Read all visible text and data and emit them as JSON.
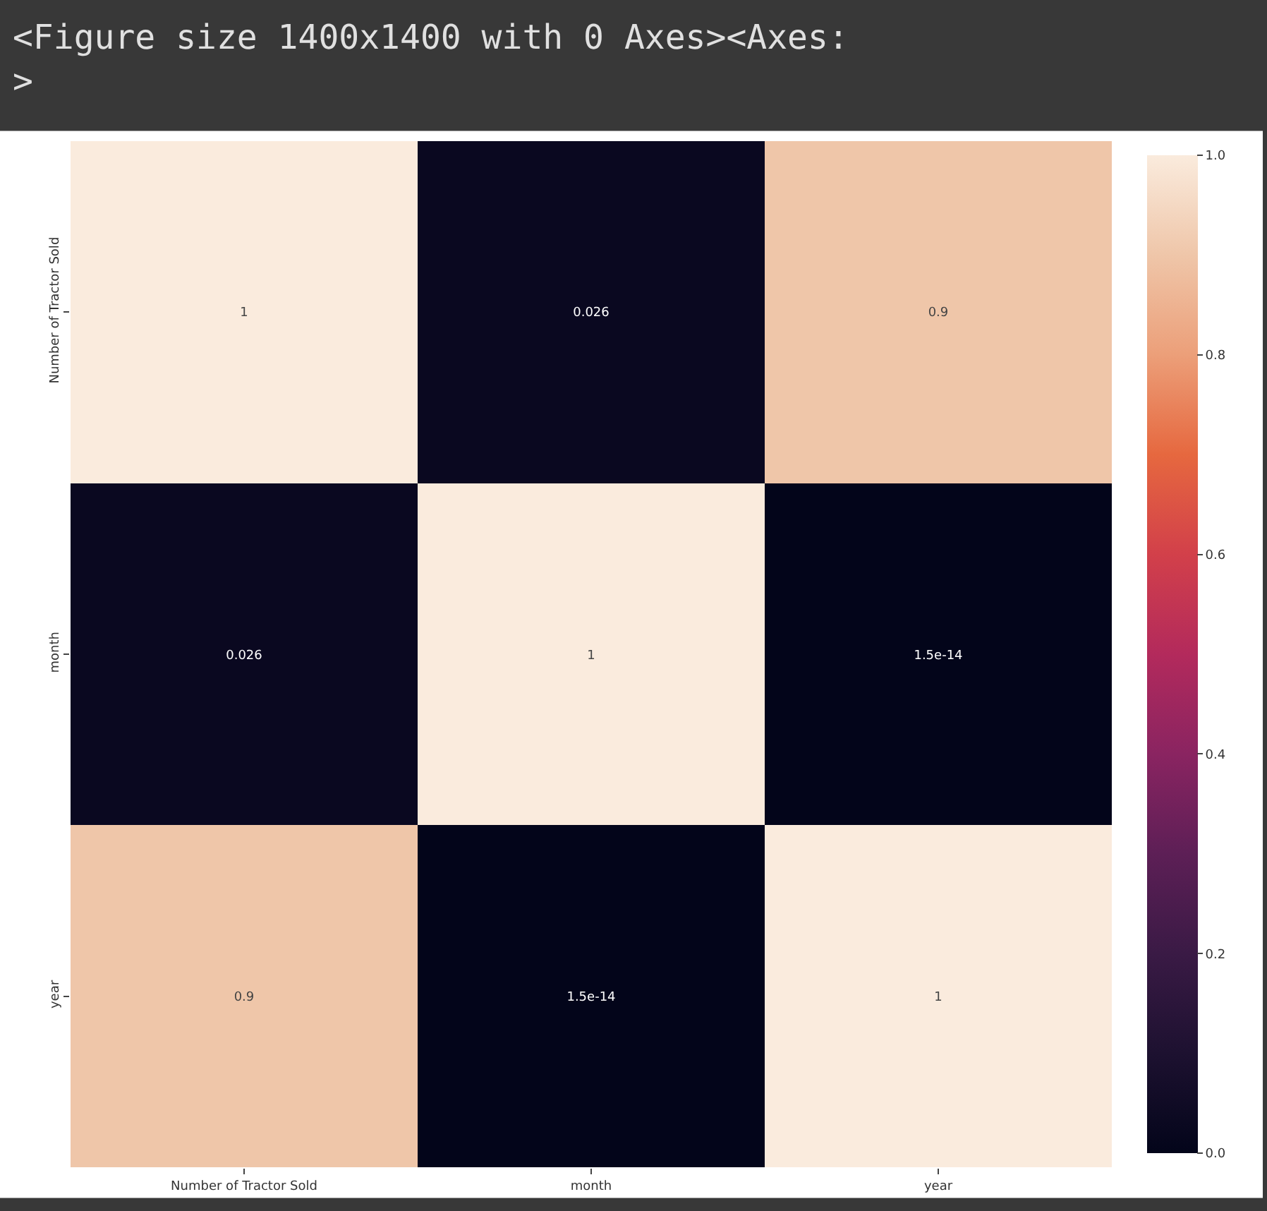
{
  "chart_data": {
    "type": "heatmap",
    "title": "<Figure size 1400x1400 with 0 Axes><Axes:\n>",
    "categories": [
      "Number of Tractor Sold",
      "month",
      "year"
    ],
    "y_categories": [
      "Number of Tractor Sold",
      "month",
      "year"
    ],
    "cells": [
      [
        1,
        0.026,
        0.9
      ],
      [
        0.026,
        1,
        1.5e-14
      ],
      [
        0.9,
        1.5e-14,
        1
      ]
    ],
    "data_labels": true,
    "clim": [
      0,
      1
    ],
    "cticks": [
      {
        "value": 0,
        "label": "0.0"
      },
      0.2,
      0.4,
      0.6,
      0.8,
      {
        "value": 1,
        "label": "1.0"
      }
    ]
  }
}
